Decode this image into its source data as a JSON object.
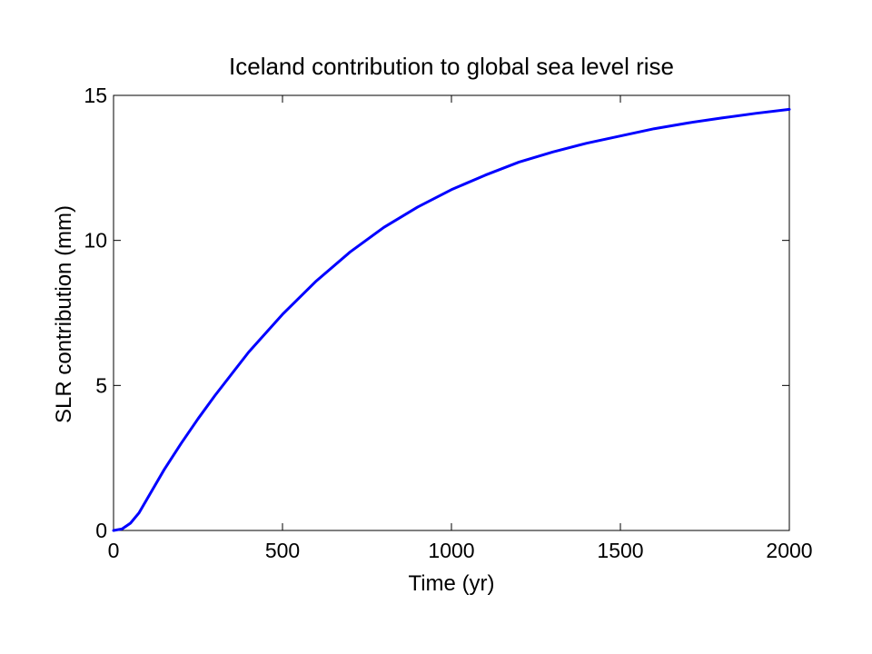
{
  "chart_data": {
    "type": "line",
    "title": "Iceland contribution to global sea level rise",
    "xlabel": "Time (yr)",
    "ylabel": "SLR contribution (mm)",
    "xlim": [
      0,
      2000
    ],
    "ylim": [
      0,
      15
    ],
    "xticks": [
      0,
      500,
      1000,
      1500,
      2000
    ],
    "yticks": [
      0,
      5,
      10,
      15
    ],
    "xtick_labels": [
      "0",
      "500",
      "1000",
      "1500",
      "2000"
    ],
    "ytick_labels": [
      "0",
      "5",
      "10",
      "15"
    ],
    "grid": false,
    "legend": false,
    "series": [
      {
        "color": "#0000ff",
        "x": [
          0,
          25,
          50,
          75,
          100,
          150,
          200,
          250,
          300,
          400,
          500,
          600,
          700,
          800,
          900,
          1000,
          1100,
          1200,
          1300,
          1400,
          1500,
          1600,
          1700,
          1800,
          1900,
          2000
        ],
        "y": [
          0,
          0.05,
          0.25,
          0.6,
          1.1,
          2.1,
          3.0,
          3.85,
          4.65,
          6.15,
          7.45,
          8.6,
          9.6,
          10.45,
          11.15,
          11.75,
          12.25,
          12.7,
          13.05,
          13.35,
          13.6,
          13.85,
          14.05,
          14.22,
          14.38,
          14.52
        ]
      }
    ]
  }
}
